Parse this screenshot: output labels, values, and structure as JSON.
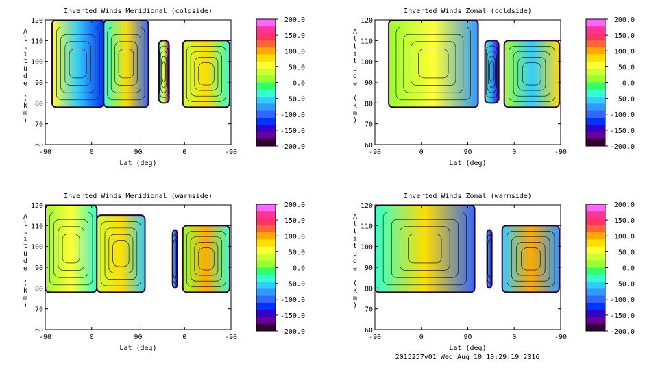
{
  "footer": "2015257v01 Wed Aug 10 10:29:19 2016",
  "colorbar": {
    "labels": [
      "200.0",
      "150.0",
      "100.0",
      "50.0",
      "0.0",
      "-50.0",
      "-100.0",
      "-150.0",
      "-200.0"
    ],
    "colors": [
      "#ff66ff",
      "#ff3399",
      "#ff3366",
      "#ff6633",
      "#ffaa00",
      "#ffdd00",
      "#ffff33",
      "#ccff33",
      "#99ff33",
      "#33ff66",
      "#33ffcc",
      "#33ccff",
      "#3399ff",
      "#3366ff",
      "#0033ff",
      "#3300cc",
      "#660099",
      "#330033"
    ]
  },
  "chart_data": [
    {
      "type": "heatmap",
      "title": "Inverted Winds Meridional (coldside)",
      "xlabel": "Lat (deg)",
      "ylabel": "Altitude (km)",
      "xticks": [
        "-90",
        "0",
        "90",
        "0",
        "-90"
      ],
      "yticks": [
        "120",
        "110",
        "100",
        "90",
        "80",
        "70",
        "60"
      ],
      "ylim": [
        60,
        120
      ],
      "zlim": [
        -200,
        200
      ]
    },
    {
      "type": "heatmap",
      "title": "Inverted Winds Zonal (coldside)",
      "xlabel": "Lat (deg)",
      "ylabel": "Altitude (km)",
      "xticks": [
        "-90",
        "0",
        "90",
        "0",
        "-90"
      ],
      "yticks": [
        "120",
        "110",
        "100",
        "90",
        "80",
        "70",
        "60"
      ],
      "ylim": [
        60,
        120
      ],
      "zlim": [
        -200,
        200
      ]
    },
    {
      "type": "heatmap",
      "title": "Inverted Winds Meridional (warmside)",
      "xlabel": "Lat (deg)",
      "ylabel": "Altitude (km)",
      "xticks": [
        "-90",
        "0",
        "90",
        "0",
        "-90"
      ],
      "yticks": [
        "120",
        "110",
        "100",
        "90",
        "80",
        "70",
        "60"
      ],
      "ylim": [
        60,
        120
      ],
      "zlim": [
        -200,
        200
      ]
    },
    {
      "type": "heatmap",
      "title": "Inverted Winds Zonal (warmside)",
      "xlabel": "Lat (deg)",
      "ylabel": "Altitude (km)",
      "xticks": [
        "-90",
        "0",
        "90",
        "0",
        "-90"
      ],
      "yticks": [
        "120",
        "110",
        "100",
        "90",
        "80",
        "70",
        "60"
      ],
      "ylim": [
        60,
        120
      ],
      "zlim": [
        -200,
        200
      ]
    }
  ]
}
